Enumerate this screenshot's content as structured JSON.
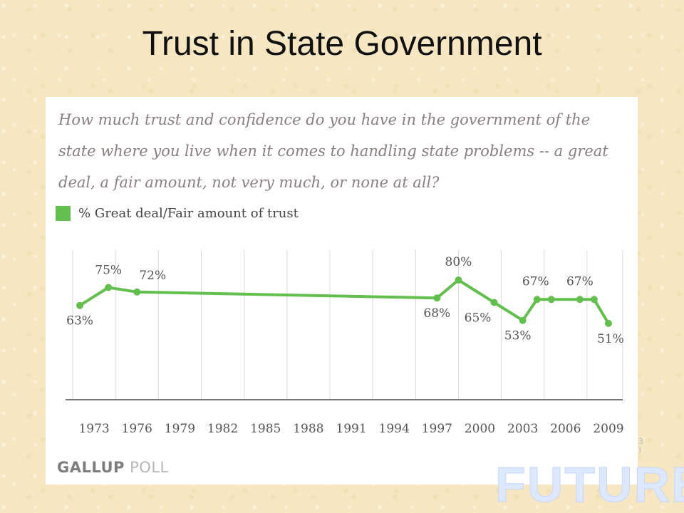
{
  "slide": {
    "title": "Trust in State Government",
    "watermark_text": "FUTURE",
    "side_mark_top": "3",
    "side_mark_bottom": ")"
  },
  "chart_data": {
    "type": "line",
    "question": "How much trust and confidence do you have in the government of the state where you live when it comes to handling state problems -- a great deal, a fair amount, not very much, or none at all?",
    "legend": [
      {
        "label": "% Great deal/Fair amount of trust",
        "color": "#62bf4d"
      }
    ],
    "x": [
      1972,
      1974,
      1976,
      1997,
      1998.5,
      2001,
      2003,
      2004,
      2005,
      2007,
      2008,
      2009
    ],
    "series": [
      {
        "name": "% Great deal/Fair amount of trust",
        "color": "#62bf4d",
        "values": [
          63,
          75,
          72,
          68,
          80,
          65,
          53,
          67,
          67,
          67,
          67,
          51
        ],
        "data_labels": [
          "63%",
          "75%",
          "72%",
          "68%",
          "80%",
          "65%",
          "53%",
          "",
          "67%",
          "67%",
          "",
          "51%"
        ]
      }
    ],
    "x_ticks": [
      1973,
      1976,
      1979,
      1982,
      1985,
      1988,
      1991,
      1994,
      1997,
      2000,
      2003,
      2006,
      2009
    ],
    "xlabel": "",
    "ylabel": "",
    "xlim": [
      1971,
      2010
    ],
    "ylim": [
      0,
      100
    ],
    "grid": "vertical",
    "legend_position": "top-left",
    "source": {
      "primary": "GALLUP",
      "secondary": "POLL"
    }
  }
}
